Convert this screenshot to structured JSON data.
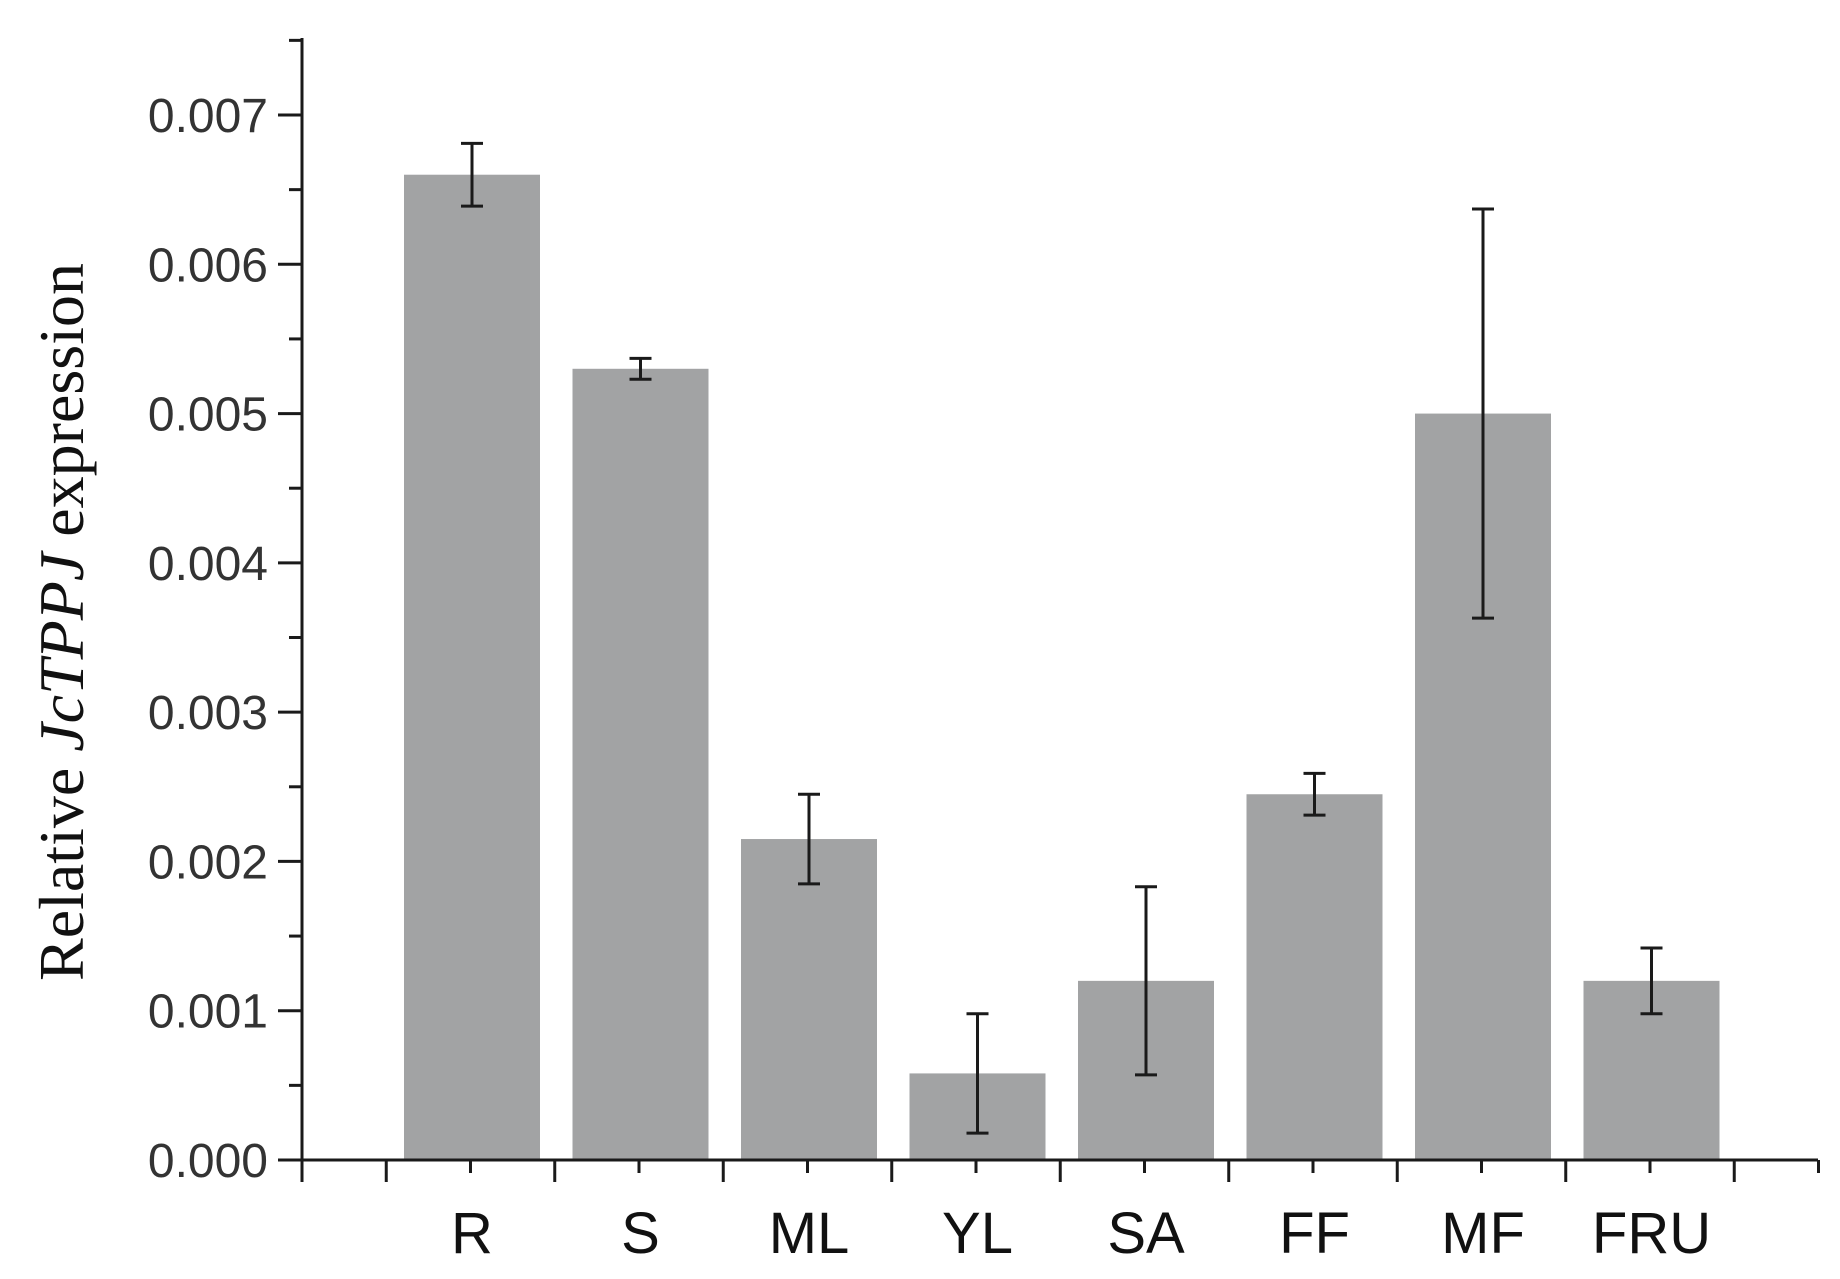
{
  "chart_data": {
    "type": "bar",
    "title": "",
    "xlabel": "",
    "ylabel": {
      "prefix": "Relative ",
      "gene": "JcTPPJ",
      "suffix": " expression"
    },
    "categories": [
      "R",
      "S",
      "ML",
      "YL",
      "SA",
      "FF",
      "MF",
      "FRU"
    ],
    "values": [
      0.0066,
      0.0053,
      0.00215,
      0.00058,
      0.0012,
      0.00245,
      0.005,
      0.0012
    ],
    "errors": [
      0.00021,
      7e-05,
      0.0003,
      0.0004,
      0.00063,
      0.00014,
      0.00137,
      0.00022
    ],
    "ylim": [
      0,
      0.0075
    ],
    "yticks": [
      "0.000",
      "0.001",
      "0.002",
      "0.003",
      "0.004",
      "0.005",
      "0.006",
      "0.007"
    ],
    "grid": false,
    "legend": "none",
    "colors": {
      "bar": "#a2a3a4",
      "error_bar": "#1a1a1a",
      "axis": "#1a1a1a"
    }
  }
}
